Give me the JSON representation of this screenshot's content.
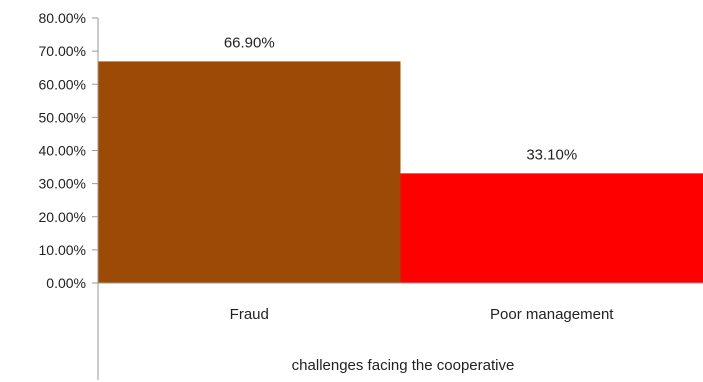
{
  "chart_data": {
    "type": "bar",
    "title": "",
    "xlabel": "challenges facing the cooperative",
    "ylabel": "",
    "categories": [
      "Fraud",
      "Poor management"
    ],
    "values": [
      66.9,
      33.1
    ],
    "value_labels": [
      "66.90%",
      "33.10%"
    ],
    "bar_colors": [
      "#9C4A06",
      "#FF0000"
    ],
    "ylim": [
      0,
      80
    ],
    "y_ticks": [
      0,
      10,
      20,
      30,
      40,
      50,
      60,
      70,
      80
    ],
    "y_tick_labels": [
      "0.00%",
      "10.00%",
      "20.00%",
      "30.00%",
      "40.00%",
      "50.00%",
      "60.00%",
      "70.00%",
      "80.00%"
    ],
    "grid": false,
    "legend": "none"
  }
}
